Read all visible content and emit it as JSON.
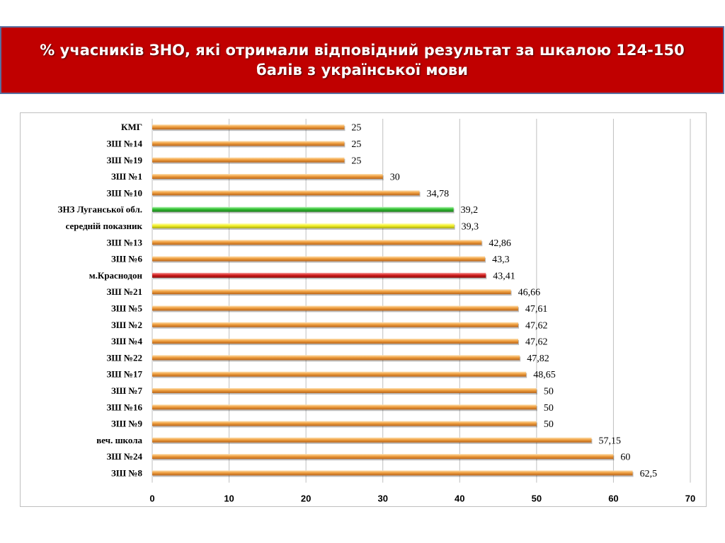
{
  "chart_data": {
    "type": "bar",
    "orientation": "horizontal",
    "title": "% учасників ЗНО, які отримали відповідний результат за шкалою 124-150 балів з української мови",
    "categories": [
      "КМГ",
      "ЗШ №14",
      "ЗШ №19",
      "ЗШ №1",
      "ЗШ №10",
      "ЗНЗ Луганської обл.",
      "середній показник",
      "ЗШ №13",
      "ЗШ №6",
      "м.Краснодон",
      "ЗШ №21",
      "ЗШ №5",
      "ЗШ №2",
      "ЗШ №4",
      "ЗШ №22",
      "ЗШ №17",
      "ЗШ №7",
      "ЗШ №16",
      "ЗШ №9",
      "веч. школа",
      "ЗШ №24",
      "ЗШ №8"
    ],
    "values": [
      25,
      25,
      25,
      30,
      34.78,
      39.2,
      39.3,
      42.86,
      43.3,
      43.41,
      46.66,
      47.61,
      47.62,
      47.62,
      47.82,
      48.65,
      50,
      50,
      50,
      57.15,
      60,
      62.5
    ],
    "value_labels": [
      "25",
      "25",
      "25",
      "30",
      "34,78",
      "39,2",
      "39,3",
      "42,86",
      "43,3",
      "43,41",
      "46,66",
      "47,61",
      "47,62",
      "47,62",
      "47,82",
      "48,65",
      "50",
      "50",
      "50",
      "57,15",
      "60",
      "62,5"
    ],
    "xlim": [
      0,
      70
    ],
    "xticks": [
      0,
      10,
      20,
      30,
      40,
      50,
      60,
      70
    ],
    "grid": true,
    "colors": {
      "default": "#f0a040",
      "highlight": {
        "ЗНЗ Луганської обл.": "#3ec43e",
        "середній показник": "#f2f22a",
        "м.Краснодон": "#d42020"
      }
    }
  }
}
